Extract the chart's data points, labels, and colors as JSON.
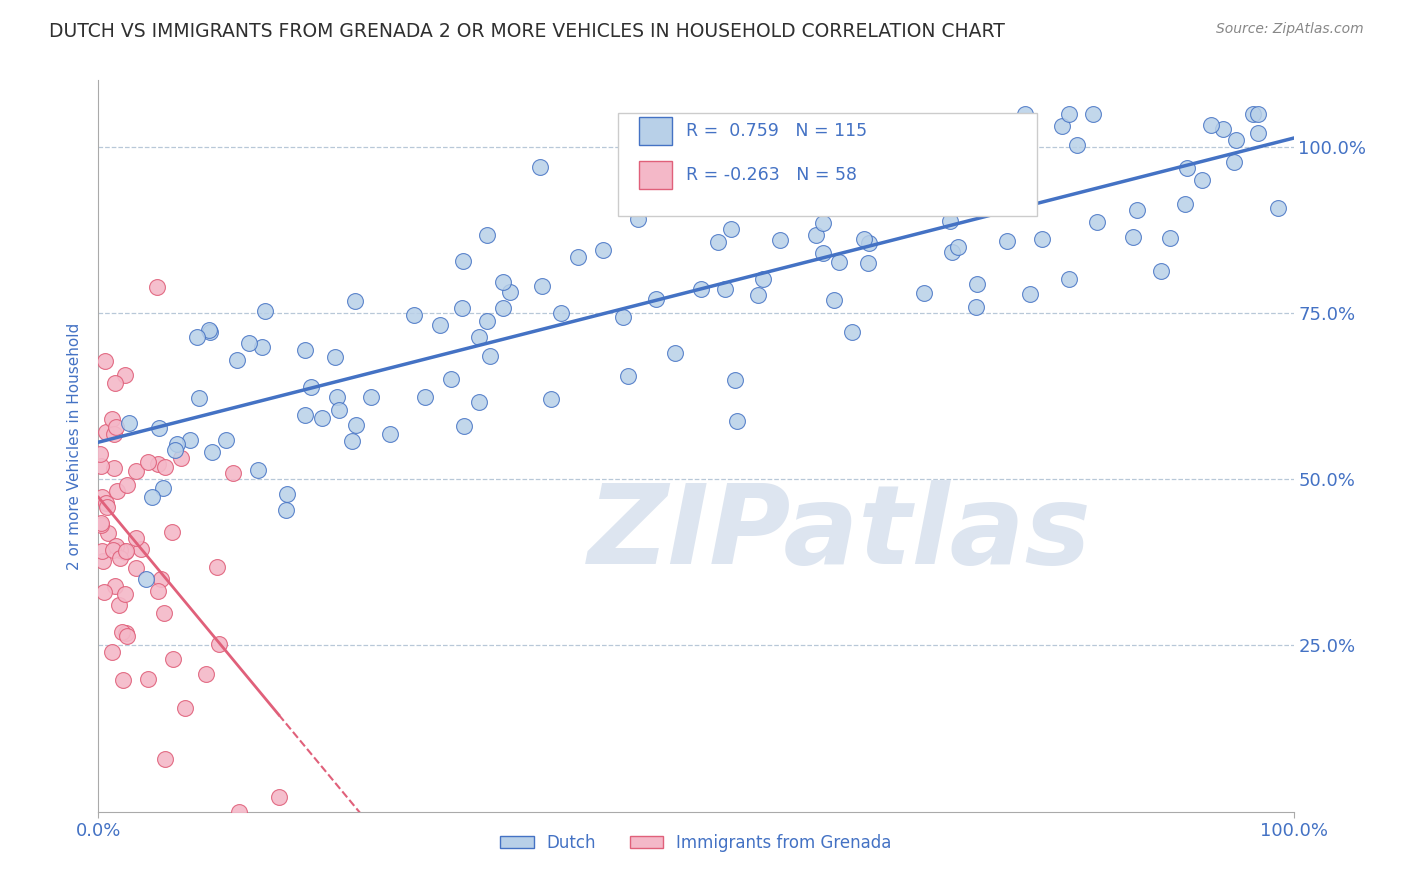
{
  "title": "DUTCH VS IMMIGRANTS FROM GRENADA 2 OR MORE VEHICLES IN HOUSEHOLD CORRELATION CHART",
  "source": "Source: ZipAtlas.com",
  "ylabel": "2 or more Vehicles in Household",
  "blue_R": 0.759,
  "blue_N": 115,
  "pink_R": -0.263,
  "pink_N": 58,
  "blue_color": "#b8d0e8",
  "blue_line_color": "#4472c4",
  "pink_color": "#f4b8c8",
  "pink_line_color": "#e0607a",
  "watermark": "ZIPatlas",
  "watermark_color": "#dde5f0",
  "legend_label_blue": "Dutch",
  "legend_label_pink": "Immigrants from Grenada",
  "background_color": "#ffffff",
  "grid_color": "#b8c8d8",
  "title_color": "#303030",
  "axis_label_color": "#4472c4",
  "right_tick_color": "#4472c4",
  "blue_seed": 42,
  "pink_seed": 77
}
